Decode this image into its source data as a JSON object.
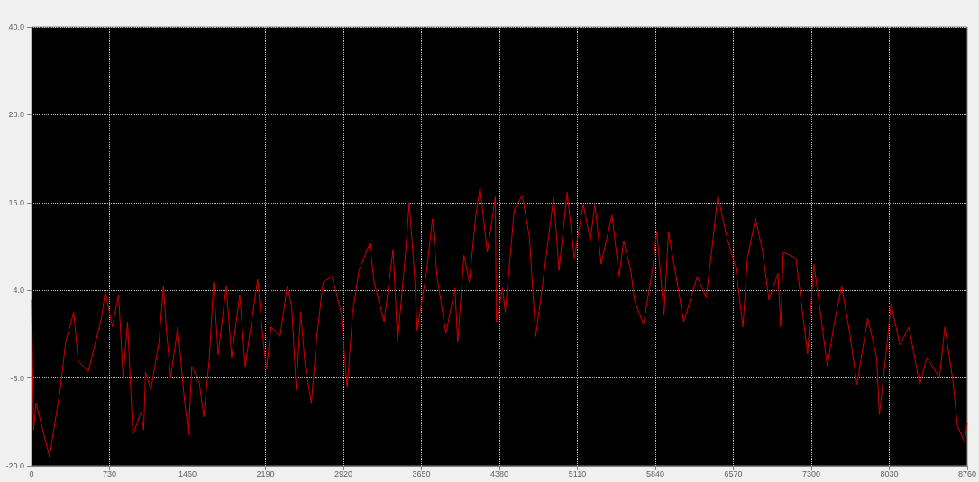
{
  "chart_data": {
    "type": "line",
    "grid": true,
    "line_style": "solid",
    "marker": "none",
    "xlim": [
      0,
      8760
    ],
    "xticks": [
      0,
      730,
      1460,
      2190,
      2920,
      3650,
      4380,
      5110,
      5840,
      6570,
      7300,
      8030,
      8760
    ],
    "ylim": [
      -20,
      40
    ],
    "yticks": [
      {
        "value": 40,
        "label": "40.0"
      },
      {
        "value": 28,
        "label": "28.0"
      },
      {
        "value": 16,
        "label": "16.0"
      },
      {
        "value": 4,
        "label": "4.0"
      },
      {
        "value": -8,
        "label": "-8.0"
      },
      {
        "value": -20,
        "label": "-20.0"
      }
    ],
    "series": [
      {
        "color": "#cc0000",
        "x": [
          0,
          20,
          42,
          168,
          268,
          319,
          395,
          437,
          529,
          655,
          689,
          756,
          815,
          857,
          899,
          949,
          1025,
          1050,
          1067,
          1117,
          1193,
          1235,
          1260,
          1302,
          1369,
          1428,
          1470,
          1500,
          1571,
          1613,
          1663,
          1705,
          1747,
          1823,
          1873,
          1949,
          2000,
          2117,
          2167,
          2200,
          2242,
          2327,
          2394,
          2436,
          2478,
          2520,
          2562,
          2620,
          2671,
          2730,
          2814,
          2898,
          2955,
          3007,
          3066,
          3166,
          3208,
          3301,
          3385,
          3427,
          3502,
          3536,
          3586,
          3611,
          3696,
          3754,
          3796,
          3880,
          3964,
          3990,
          4048,
          4099,
          4158,
          4199,
          4267,
          4342,
          4351,
          4410,
          4435,
          4519,
          4594,
          4661,
          4720,
          4787,
          4888,
          4938,
          5014,
          5081,
          5165,
          5232,
          5274,
          5333,
          5434,
          5501,
          5543,
          5610,
          5644,
          5728,
          5812,
          5854,
          5921,
          5963,
          6106,
          6232,
          6316,
          6366,
          6425,
          6509,
          6593,
          6660,
          6702,
          6778,
          6845,
          6904,
          6988,
          7013,
          7038,
          7156,
          7265,
          7324,
          7374,
          7450,
          7517,
          7584,
          7660,
          7727,
          7828,
          7912,
          7937,
          7996,
          8046,
          8130,
          8214,
          8315,
          8382,
          8500,
          8550,
          8626,
          8668,
          8735,
          8760
        ],
        "values": [
          2.7,
          -15.1,
          -11.4,
          -18.8,
          -9.6,
          -3.1,
          1.0,
          -5.6,
          -7.2,
          0.2,
          3.9,
          -1.0,
          3.4,
          -8.0,
          -0.3,
          -15.8,
          -12.6,
          -15.1,
          -7.2,
          -9.6,
          -3.1,
          4.6,
          -1.0,
          -8.0,
          -1.0,
          -10.5,
          -15.8,
          -6.4,
          -8.7,
          -13.3,
          -5.6,
          5.1,
          -4.8,
          4.6,
          -5.2,
          3.4,
          -6.4,
          5.5,
          -2.7,
          -6.8,
          -1.0,
          -2.3,
          4.6,
          1.8,
          -9.6,
          1.0,
          -6.4,
          -11.4,
          -2.3,
          5.1,
          5.9,
          1.0,
          -9.3,
          1.0,
          6.7,
          10.4,
          5.1,
          -0.3,
          9.6,
          -3.1,
          9.2,
          16.0,
          5.9,
          -1.5,
          6.3,
          13.8,
          5.9,
          -1.9,
          4.3,
          -3.1,
          8.8,
          5.1,
          14.1,
          18.1,
          9.2,
          16.8,
          -0.3,
          4.3,
          1.0,
          15.0,
          17.0,
          11.3,
          -2.3,
          5.1,
          16.8,
          6.7,
          17.4,
          8.4,
          15.8,
          10.8,
          15.8,
          7.6,
          14.3,
          5.9,
          10.8,
          6.7,
          2.7,
          -0.7,
          6.7,
          12.0,
          0.6,
          12.0,
          -0.3,
          5.9,
          3.0,
          9.2,
          17.0,
          11.3,
          7.1,
          -1.0,
          8.4,
          13.9,
          9.2,
          2.7,
          6.3,
          -1.0,
          9.2,
          8.4,
          -4.7,
          7.6,
          2.2,
          -6.4,
          -0.3,
          4.6,
          -1.9,
          -8.9,
          0.2,
          -5.2,
          -13.0,
          -5.2,
          2.2,
          -3.5,
          -1.0,
          -8.9,
          -5.2,
          -8.0,
          -1.0,
          -8.4,
          -14.6,
          -16.7,
          -14.2
        ]
      }
    ]
  }
}
